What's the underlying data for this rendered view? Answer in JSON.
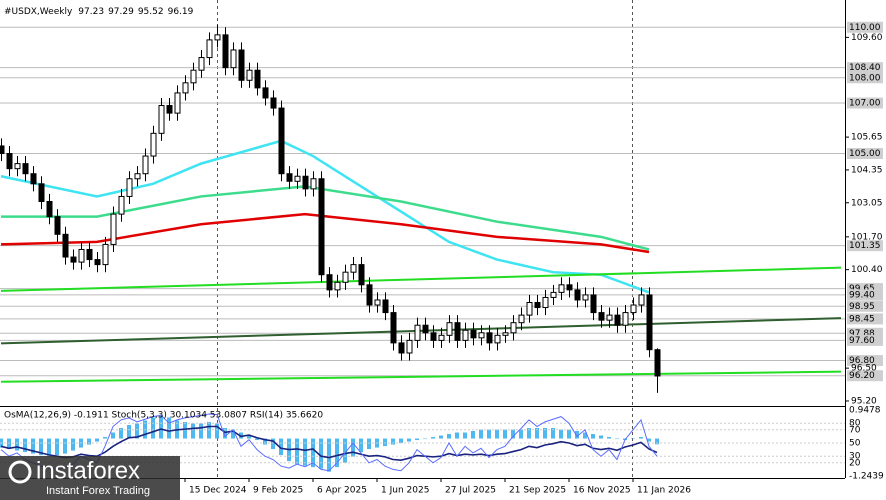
{
  "chart_data": {
    "type": "candlestick",
    "title": "#USDX,Weekly",
    "indicator_label": "OsMA(12,26,9) -0.1911  Stoch(5,3,3) 30.1034 53.0807  RSI(14) 35.6620",
    "watermark": "instaforex",
    "watermark_sub": "Instant Forex Trading",
    "categories": [
      null,
      null,
      null,
      null,
      null,
      null,
      null,
      null,
      null,
      null,
      null,
      null,
      null,
      null,
      null,
      null,
      null,
      null,
      null,
      null,
      null,
      null,
      null,
      "15 Dec 2024",
      null,
      null,
      null,
      null,
      null,
      null,
      null,
      "9 Feb 2025",
      null,
      null,
      null,
      null,
      null,
      null,
      null,
      "6 Apr 2025",
      null,
      null,
      null,
      null,
      null,
      null,
      null,
      "1 Jun 2025",
      null,
      null,
      null,
      null,
      null,
      null,
      null,
      "27 Jul 2025",
      null,
      null,
      null,
      null,
      null,
      null,
      null,
      "21 Sep 2025",
      null,
      null,
      null,
      null,
      null,
      null,
      null,
      "16 Nov 2025",
      null,
      null,
      null,
      null,
      null,
      null,
      null,
      "11 Jan 2026",
      null,
      null,
      null
    ],
    "open": [
      105.3,
      105.0,
      104.4,
      104.6,
      104.2,
      103.8,
      103.1,
      102.5,
      101.8,
      100.9,
      100.7,
      101.2,
      100.8,
      100.6,
      101.4,
      102.6,
      103.3,
      104.0,
      104.2,
      104.9,
      105.8,
      106.9,
      106.6,
      107.4,
      107.8,
      108.3,
      108.8,
      109.5,
      109.7,
      108.4,
      109.1,
      107.9,
      108.3,
      107.6,
      107.2,
      106.8,
      104.2,
      103.9,
      104.1,
      103.6,
      104.0,
      100.2,
      99.6,
      99.9,
      100.3,
      100.6,
      99.8,
      99.0,
      99.2,
      98.7,
      97.5,
      97.1,
      97.6,
      98.2,
      97.9,
      97.6,
      97.8,
      98.3,
      97.6,
      98.0,
      97.7,
      97.9,
      97.5,
      97.8,
      97.9,
      98.3,
      98.6,
      99.1,
      98.9,
      99.3,
      99.5,
      99.8,
      99.6,
      99.2,
      99.4,
      98.7,
      98.4,
      98.6,
      98.2,
      98.7,
      99.0,
      99.4,
      97.23
    ],
    "high": [
      105.6,
      105.3,
      104.9,
      104.9,
      104.5,
      104.1,
      103.4,
      102.8,
      102.1,
      101.2,
      101.5,
      101.5,
      101.1,
      101.7,
      102.9,
      103.6,
      104.3,
      104.5,
      105.2,
      106.1,
      107.2,
      107.2,
      107.7,
      108.1,
      108.6,
      109.1,
      109.8,
      110.1,
      110.0,
      109.4,
      109.4,
      108.6,
      108.6,
      107.9,
      107.5,
      107.1,
      104.5,
      104.4,
      104.4,
      104.3,
      104.3,
      100.5,
      100.2,
      100.6,
      100.9,
      100.9,
      100.1,
      99.5,
      99.5,
      99.0,
      97.8,
      97.9,
      98.5,
      98.5,
      98.2,
      98.1,
      98.6,
      98.6,
      98.3,
      98.3,
      98.2,
      98.2,
      98.1,
      98.2,
      98.6,
      98.9,
      99.4,
      99.4,
      99.6,
      99.8,
      100.1,
      100.1,
      99.9,
      99.7,
      99.7,
      99.0,
      98.9,
      98.9,
      99.0,
      99.3,
      99.7,
      99.7,
      97.29
    ],
    "low": [
      104.7,
      104.1,
      104.1,
      103.9,
      103.5,
      102.8,
      102.2,
      101.5,
      100.6,
      100.4,
      100.4,
      100.5,
      100.3,
      100.3,
      101.1,
      102.3,
      103.0,
      103.7,
      103.9,
      104.6,
      105.5,
      106.3,
      106.3,
      107.1,
      107.5,
      108.0,
      108.5,
      109.2,
      108.1,
      108.1,
      107.6,
      107.6,
      107.3,
      106.9,
      106.5,
      103.9,
      103.6,
      103.6,
      103.3,
      103.3,
      99.9,
      99.3,
      99.3,
      99.6,
      100.0,
      99.5,
      98.7,
      98.7,
      98.4,
      97.2,
      96.8,
      96.8,
      97.3,
      97.6,
      97.3,
      97.3,
      97.5,
      97.3,
      97.3,
      97.4,
      97.4,
      97.2,
      97.2,
      97.5,
      97.6,
      98.0,
      98.3,
      98.6,
      98.6,
      99.0,
      99.2,
      99.3,
      98.9,
      98.9,
      98.4,
      98.1,
      98.1,
      97.9,
      97.9,
      98.4,
      98.7,
      96.93,
      95.52
    ],
    "close": [
      105.0,
      104.4,
      104.6,
      104.2,
      103.8,
      103.1,
      102.5,
      101.8,
      100.9,
      100.7,
      101.2,
      100.8,
      100.6,
      101.4,
      102.6,
      103.3,
      104.0,
      104.2,
      104.9,
      105.8,
      106.9,
      106.6,
      107.4,
      107.8,
      108.3,
      108.8,
      109.5,
      109.7,
      108.4,
      109.1,
      107.9,
      108.3,
      107.6,
      107.2,
      106.8,
      104.2,
      103.9,
      104.1,
      103.6,
      104.0,
      100.2,
      99.6,
      99.9,
      100.3,
      100.6,
      99.8,
      99.0,
      99.2,
      98.7,
      97.5,
      97.1,
      97.6,
      98.2,
      97.9,
      97.6,
      97.8,
      98.3,
      97.6,
      98.0,
      97.7,
      97.9,
      97.5,
      97.8,
      97.9,
      98.3,
      98.6,
      99.1,
      98.9,
      99.3,
      99.5,
      99.8,
      99.6,
      99.2,
      99.4,
      98.7,
      98.4,
      98.6,
      98.2,
      98.7,
      99.0,
      99.4,
      97.23,
      96.19
    ],
    "up_color": "#ffffff",
    "down_color": "#000000",
    "ylim": [
      95.04,
      111.08
    ],
    "yticks": [
      {
        "value": 109.6,
        "label": "109.60"
      },
      105.65,
      104.35,
      103.05,
      {
        "value": 101.7,
        "label": "101.70"
      },
      {
        "value": 100.4,
        "label": "100.40"
      },
      {
        "value": 96.5,
        "label": "96.50"
      },
      {
        "value": 95.2,
        "label": "95.20"
      }
    ],
    "levels": [
      {
        "value": 110,
        "label": "110.00"
      },
      {
        "value": 108.4,
        "label": "108.40"
      },
      {
        "value": 108,
        "label": "108.00"
      },
      {
        "value": 107,
        "label": "107.00"
      },
      {
        "value": 105,
        "label": "105.00"
      },
      101.35,
      99.65,
      {
        "value": 99.4,
        "label": "99.40"
      },
      98.95,
      98.45,
      97.88,
      {
        "value": 97.6,
        "label": "97.60"
      },
      {
        "value": 96.8,
        "label": "96.80"
      },
      {
        "value": 96.2,
        "label": "96.20"
      }
    ],
    "lines": [
      {
        "color": "#3ee4f2",
        "x": [
          0,
          12,
          19,
          25,
          35,
          39,
          50,
          56,
          62,
          69,
          75,
          81
        ],
        "values": [
          104.1,
          103.3,
          103.8,
          104.6,
          105.5,
          104.9,
          102.7,
          101.5,
          100.8,
          100.3,
          100.2,
          99.5
        ]
      },
      {
        "color": "#3ddc8c",
        "x": [
          0,
          12,
          25,
          38,
          50,
          62,
          75,
          81
        ],
        "values": [
          102.5,
          102.5,
          103.3,
          103.7,
          103.1,
          102.3,
          101.7,
          101.2
        ]
      },
      {
        "color": "#e00000",
        "x": [
          0,
          12,
          25,
          38,
          50,
          62,
          75,
          81
        ],
        "values": [
          101.4,
          101.5,
          102.2,
          102.6,
          102.2,
          101.7,
          101.4,
          101.1
        ]
      },
      {
        "color": "#22dd22",
        "x": [
          0,
          105
        ],
        "values": [
          99.56,
          100.48
        ]
      },
      {
        "color": "#22dd22",
        "x": [
          0,
          105
        ],
        "values": [
          95.96,
          96.36
        ]
      },
      {
        "color": "#2f5e2f",
        "x": [
          0,
          105
        ],
        "values": [
          97.48,
          98.48
        ]
      }
    ],
    "osma": {
      "color": "#4fb8ee",
      "ylim": [
        -1.2439,
        0.9478
      ],
      "ticks": [
        {
          "value": 0.9478,
          "label": "0.9478"
        },
        {
          "value": -1.2439,
          "label": "-1.2439"
        }
      ],
      "values": [
        -0.3,
        -0.35,
        -0.4,
        -0.45,
        -0.5,
        -0.55,
        -0.6,
        -0.55,
        -0.5,
        -0.4,
        -0.3,
        -0.2,
        -0.1,
        0.05,
        0.2,
        0.35,
        0.45,
        0.5,
        0.6,
        0.7,
        0.75,
        0.7,
        0.6,
        0.55,
        0.5,
        0.5,
        0.55,
        0.5,
        0.35,
        0.3,
        0.2,
        0.1,
        -0.05,
        -0.2,
        -0.35,
        -0.55,
        -0.75,
        -0.85,
        -0.9,
        -0.95,
        -1.0,
        -1.1,
        -0.95,
        -0.8,
        -0.6,
        -0.45,
        -0.35,
        -0.3,
        -0.25,
        -0.2,
        -0.15,
        -0.1,
        -0.05,
        0.0,
        0.05,
        0.1,
        0.15,
        0.2,
        0.2,
        0.25,
        0.3,
        0.3,
        0.3,
        0.3,
        0.3,
        0.3,
        0.35,
        0.35,
        0.35,
        0.35,
        0.3,
        0.3,
        0.25,
        0.2,
        0.15,
        0.1,
        0.05,
        0.0,
        -0.05,
        0.0,
        0.05,
        -0.1,
        -0.1911
      ]
    },
    "oscillator": {
      "ylim": [
        0,
        100
      ],
      "ticks": [
        80,
        70,
        50,
        30,
        20
      ],
      "series": [
        {
          "color": "#1a237e",
          "values": [
            45,
            42,
            44,
            41,
            38,
            35,
            32,
            30,
            28,
            29,
            33,
            31,
            30,
            36,
            45,
            52,
            58,
            59,
            63,
            67,
            71,
            68,
            70,
            71,
            72,
            73,
            75,
            75,
            66,
            68,
            60,
            62,
            58,
            55,
            53,
            42,
            40,
            41,
            39,
            41,
            30,
            28,
            31,
            34,
            36,
            33,
            30,
            31,
            29,
            25,
            24,
            27,
            31,
            30,
            29,
            30,
            34,
            31,
            33,
            32,
            33,
            31,
            33,
            34,
            37,
            40,
            45,
            43,
            47,
            49,
            52,
            50,
            46,
            48,
            42,
            40,
            42,
            39,
            44,
            47,
            51,
            41,
            35.662
          ]
        },
        {
          "color": "#5a6cff",
          "values": [
            40,
            30,
            35,
            25,
            20,
            15,
            12,
            10,
            12,
            18,
            30,
            25,
            20,
            45,
            75,
            85,
            88,
            82,
            86,
            90,
            92,
            80,
            85,
            88,
            90,
            92,
            94,
            93,
            60,
            70,
            45,
            55,
            40,
            30,
            25,
            15,
            12,
            18,
            14,
            20,
            10,
            8,
            20,
            35,
            50,
            35,
            20,
            25,
            15,
            10,
            8,
            20,
            40,
            30,
            20,
            28,
            50,
            30,
            45,
            35,
            42,
            28,
            40,
            45,
            60,
            72,
            85,
            75,
            82,
            86,
            90,
            80,
            60,
            70,
            40,
            30,
            40,
            25,
            55,
            70,
            85,
            45,
            30.1034
          ]
        }
      ]
    }
  }
}
